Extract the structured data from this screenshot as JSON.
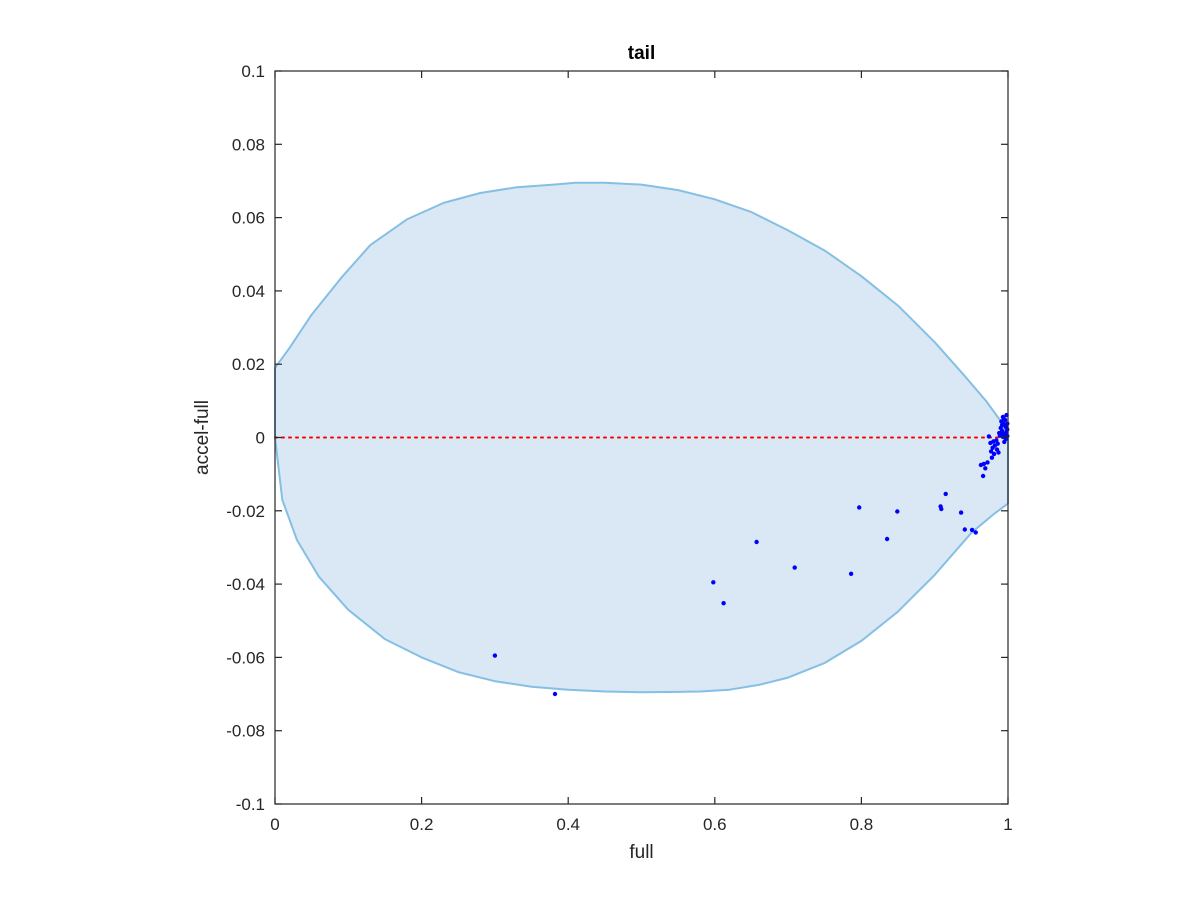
{
  "chart_data": {
    "type": "scatter",
    "title": "tail",
    "xlabel": "full",
    "ylabel": "accel-full",
    "xlim": [
      0,
      1
    ],
    "ylim": [
      -0.1,
      0.1
    ],
    "xticks": [
      0,
      0.2,
      0.4,
      0.6,
      0.8,
      1
    ],
    "xtick_labels": [
      "0",
      "0.2",
      "0.4",
      "0.6",
      "0.8",
      "1"
    ],
    "yticks": [
      -0.1,
      -0.08,
      -0.06,
      -0.04,
      -0.02,
      0,
      0.02,
      0.04,
      0.06,
      0.08,
      0.1
    ],
    "ytick_labels": [
      "-0.1",
      "-0.08",
      "-0.06",
      "-0.04",
      "-0.02",
      "0",
      "0.02",
      "0.04",
      "0.06",
      "0.08",
      "0.1"
    ],
    "grid": false,
    "region": {
      "shape": "ellipse",
      "boundary": [
        [
          0,
          0
        ],
        [
          0.01,
          -0.017
        ],
        [
          0.03,
          -0.028
        ],
        [
          0.06,
          -0.038
        ],
        [
          0.1,
          -0.047
        ],
        [
          0.15,
          -0.055
        ],
        [
          0.2,
          -0.06
        ],
        [
          0.25,
          -0.064
        ],
        [
          0.3,
          -0.0665
        ],
        [
          0.35,
          -0.068
        ],
        [
          0.4,
          -0.0688
        ],
        [
          0.45,
          -0.0693
        ],
        [
          0.5,
          -0.0695
        ],
        [
          0.55,
          -0.0694
        ],
        [
          0.58,
          -0.0693
        ],
        [
          0.62,
          -0.0688
        ],
        [
          0.66,
          -0.0675
        ],
        [
          0.7,
          -0.0655
        ],
        [
          0.75,
          -0.0615
        ],
        [
          0.8,
          -0.0555
        ],
        [
          0.85,
          -0.0475
        ],
        [
          0.9,
          -0.0375
        ],
        [
          0.95,
          -0.026
        ],
        [
          0.98,
          -0.021
        ],
        [
          1,
          -0.018
        ],
        [
          1,
          0
        ],
        [
          0.99,
          0.0045
        ],
        [
          0.97,
          0.01
        ],
        [
          0.94,
          0.017
        ],
        [
          0.9,
          0.026
        ],
        [
          0.85,
          0.036
        ],
        [
          0.8,
          0.044
        ],
        [
          0.75,
          0.051
        ],
        [
          0.7,
          0.0565
        ],
        [
          0.65,
          0.0615
        ],
        [
          0.6,
          0.065
        ],
        [
          0.55,
          0.0675
        ],
        [
          0.5,
          0.069
        ],
        [
          0.45,
          0.0695
        ],
        [
          0.41,
          0.0695
        ],
        [
          0.38,
          0.069
        ],
        [
          0.33,
          0.0683
        ],
        [
          0.28,
          0.0667
        ],
        [
          0.23,
          0.064
        ],
        [
          0.18,
          0.0595
        ],
        [
          0.13,
          0.0525
        ],
        [
          0.09,
          0.0435
        ],
        [
          0.05,
          0.0335
        ],
        [
          0.02,
          0.0245
        ],
        [
          0,
          0.019
        ]
      ],
      "fill": "#d9e8f4",
      "stroke": "#85bfe3"
    },
    "reference_line": {
      "y": 0,
      "x": [
        0,
        1
      ],
      "style": "dotted",
      "color": "#ff0000"
    },
    "series": [
      {
        "marker_color": "#0000ff",
        "points": [
          [
            0.3,
            -0.0595
          ],
          [
            0.382,
            -0.07
          ],
          [
            0.598,
            -0.0395
          ],
          [
            0.612,
            -0.0452
          ],
          [
            0.657,
            -0.0285
          ],
          [
            0.709,
            -0.0355
          ],
          [
            0.786,
            -0.0372
          ],
          [
            0.797,
            -0.0191
          ],
          [
            0.835,
            -0.0277
          ],
          [
            0.849,
            -0.0202
          ],
          [
            0.908,
            -0.0188
          ],
          [
            0.909,
            -0.0195
          ],
          [
            0.915,
            -0.0154
          ],
          [
            0.936,
            -0.0205
          ],
          [
            0.941,
            -0.0251
          ],
          [
            0.951,
            -0.0252
          ],
          [
            0.956,
            -0.0259
          ],
          [
            0.963,
            -0.0075
          ],
          [
            0.966,
            -0.0105
          ],
          [
            0.967,
            -0.0072
          ],
          [
            0.969,
            -0.0084
          ],
          [
            0.972,
            -0.0068
          ],
          [
            0.974,
            0.0003
          ],
          [
            0.976,
            -0.0015
          ],
          [
            0.977,
            -0.0038
          ],
          [
            0.978,
            -0.0055
          ],
          [
            0.979,
            -0.0028
          ],
          [
            0.98,
            -0.0011
          ],
          [
            0.981,
            -0.0045
          ],
          [
            0.982,
            -0.0022
          ],
          [
            0.984,
            -0.0008
          ],
          [
            0.985,
            -0.0033
          ],
          [
            0.986,
            -0.0017
          ],
          [
            0.987,
            -0.0041
          ],
          [
            0.988,
            0.0012
          ],
          [
            0.989,
            0.0005
          ],
          [
            0.99,
            0.0026
          ],
          [
            0.991,
            0.0044
          ],
          [
            0.992,
            0.0018
          ],
          [
            0.993,
            0.0056
          ],
          [
            0.994,
            0.0037
          ],
          [
            0.995,
            0.0009
          ],
          [
            0.996,
            0.0048
          ],
          [
            0.997,
            0.0029
          ],
          [
            0.998,
            0.0015
          ],
          [
            0.999,
            0.0038
          ],
          [
            0.999,
            0.0004
          ],
          [
            0.998,
            0.0061
          ],
          [
            0.997,
            -0.0004
          ],
          [
            0.999,
            0.0022
          ],
          [
            0.996,
            0.0033
          ],
          [
            0.994,
            0.0052
          ],
          [
            0.992,
            0.0034
          ],
          [
            0.99,
            0.0011
          ],
          [
            0.995,
            -0.0012
          ],
          [
            0.993,
            0.0002
          ]
        ]
      }
    ]
  }
}
